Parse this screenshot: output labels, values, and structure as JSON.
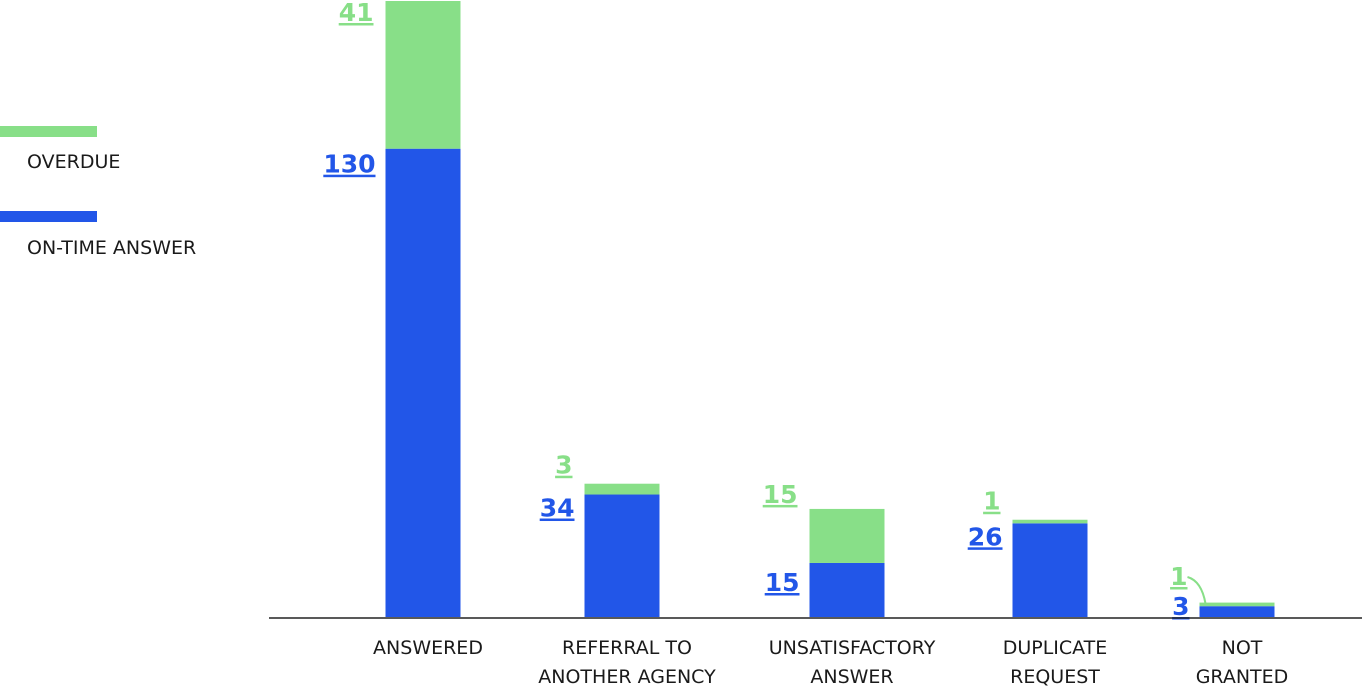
{
  "chart_data": {
    "type": "bar",
    "stacked": true,
    "title": "",
    "xlabel": "",
    "ylabel": "",
    "ylim": [
      0,
      171
    ],
    "grid": false,
    "legend_position": "left",
    "categories": [
      [
        "ANSWERED"
      ],
      [
        "REFERRAL TO",
        "ANOTHER AGENCY"
      ],
      [
        "UNSATISFACTORY",
        "ANSWER"
      ],
      [
        "DUPLICATE",
        "REQUEST"
      ],
      [
        "NOT",
        "GRANTED"
      ]
    ],
    "series": [
      {
        "name": "ON-TIME ANSWER",
        "color": "#2256e8",
        "values": [
          130,
          34,
          15,
          26,
          3
        ],
        "labels": [
          "130",
          "34",
          "15",
          "26",
          "3"
        ]
      },
      {
        "name": "OVERDUE",
        "color": "#88df88",
        "values": [
          41,
          3,
          15,
          1,
          1
        ],
        "labels": [
          "41",
          "3",
          "15",
          "1",
          "1"
        ]
      }
    ]
  }
}
